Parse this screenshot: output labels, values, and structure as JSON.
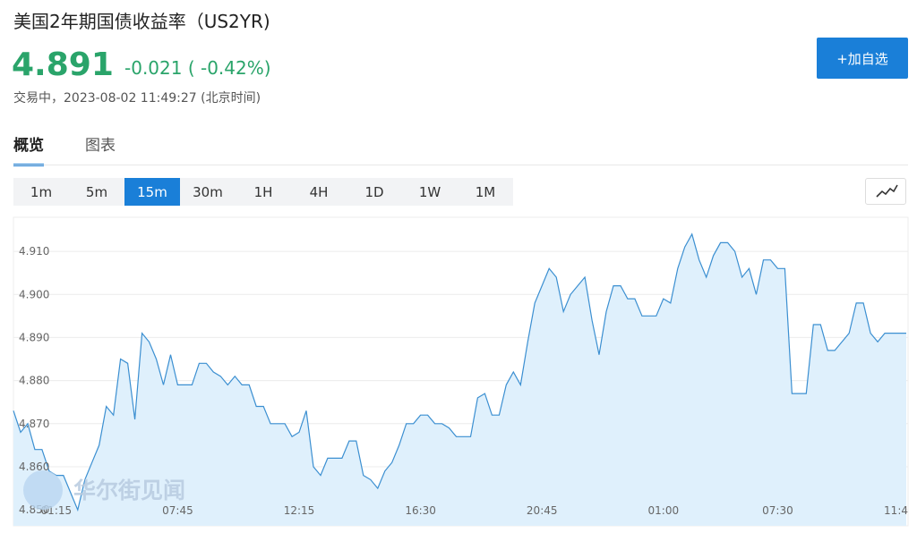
{
  "header": {
    "title": "美国2年期国债收益率（US2YR)",
    "price": "4.891",
    "change": "-0.021 ( -0.42%)",
    "status": "交易中，2023-08-02 11:49:27 (北京时间)",
    "button": "+加自选"
  },
  "tabs": {
    "items": [
      "概览",
      "图表"
    ],
    "active": 0
  },
  "intervals": {
    "items": [
      "1m",
      "5m",
      "15m",
      "30m",
      "1H",
      "4H",
      "1D",
      "1W",
      "1M"
    ],
    "active": 2
  },
  "watermark": "华尔街见闻",
  "chart_data": {
    "type": "area",
    "color": "#3b8fd1",
    "fill": "#dff0fc",
    "grid": true,
    "ylim": [
      4.8463,
      4.9179
    ],
    "yticks": [
      {
        "value": 4.85,
        "label": "4.850"
      },
      {
        "value": 4.86,
        "label": "4.860"
      },
      {
        "value": 4.87,
        "label": "4.870"
      },
      {
        "value": 4.88,
        "label": "4.880"
      },
      {
        "value": 4.89,
        "label": "4.890"
      },
      {
        "value": 4.9,
        "label": "4.900"
      },
      {
        "value": 4.91,
        "label": "4.910"
      }
    ],
    "categories": [
      null,
      null,
      null,
      null,
      null,
      null,
      "01:15",
      null,
      null,
      null,
      null,
      null,
      null,
      null,
      null,
      null,
      null,
      null,
      null,
      null,
      null,
      null,
      null,
      "07:45",
      null,
      null,
      null,
      null,
      null,
      null,
      null,
      null,
      null,
      null,
      null,
      null,
      null,
      null,
      null,
      null,
      "12:15",
      null,
      null,
      null,
      null,
      null,
      null,
      null,
      null,
      null,
      null,
      null,
      null,
      null,
      null,
      null,
      null,
      "16:30",
      null,
      null,
      null,
      null,
      null,
      null,
      null,
      null,
      null,
      null,
      null,
      null,
      null,
      null,
      null,
      null,
      "20:45",
      null,
      null,
      null,
      null,
      null,
      null,
      null,
      null,
      null,
      null,
      null,
      null,
      null,
      null,
      null,
      null,
      "01:00",
      null,
      null,
      null,
      null,
      null,
      null,
      null,
      null,
      null,
      null,
      null,
      null,
      null,
      null,
      null,
      "07:30",
      null,
      null,
      null,
      null,
      null,
      null,
      null,
      null,
      null,
      null,
      null,
      null,
      null,
      null,
      null,
      null,
      "11:4",
      null
    ],
    "values": [
      4.873,
      4.868,
      4.87,
      4.864,
      4.864,
      4.859,
      4.858,
      4.858,
      4.854,
      4.85,
      4.857,
      4.861,
      4.865,
      4.874,
      4.872,
      4.885,
      4.884,
      4.871,
      4.891,
      4.889,
      4.885,
      4.879,
      4.886,
      4.879,
      4.879,
      4.879,
      4.884,
      4.884,
      4.882,
      4.881,
      4.879,
      4.881,
      4.879,
      4.879,
      4.874,
      4.874,
      4.87,
      4.87,
      4.87,
      4.867,
      4.868,
      4.873,
      4.86,
      4.858,
      4.862,
      4.862,
      4.862,
      4.866,
      4.866,
      4.858,
      4.857,
      4.855,
      4.859,
      4.861,
      4.865,
      4.87,
      4.87,
      4.872,
      4.872,
      4.87,
      4.87,
      4.869,
      4.867,
      4.867,
      4.867,
      4.876,
      4.877,
      4.872,
      4.872,
      4.879,
      4.882,
      4.879,
      4.889,
      4.898,
      4.902,
      4.906,
      4.904,
      4.896,
      4.9,
      4.902,
      4.904,
      4.894,
      4.886,
      4.896,
      4.902,
      4.902,
      4.899,
      4.899,
      4.895,
      4.895,
      4.895,
      4.899,
      4.898,
      4.906,
      4.911,
      4.914,
      4.908,
      4.904,
      4.909,
      4.912,
      4.912,
      4.91,
      4.904,
      4.906,
      4.9,
      4.908,
      4.908,
      4.906,
      4.906,
      4.877,
      4.877,
      4.877,
      4.893,
      4.893,
      4.887,
      4.887,
      4.889,
      4.891,
      4.898,
      4.898,
      4.891,
      4.889,
      4.891,
      4.891,
      4.891,
      4.891
    ]
  }
}
